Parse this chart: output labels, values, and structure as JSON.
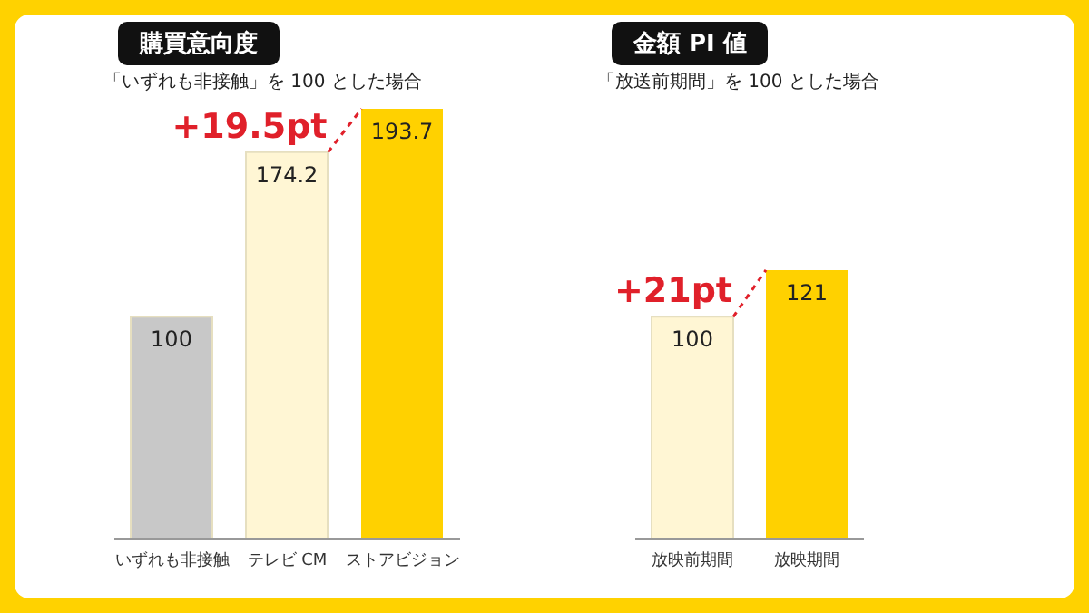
{
  "chart_data": [
    {
      "type": "bar",
      "title": "購買意向度",
      "subtitle": "「いずれも非接触」を 100 とした場合",
      "categories": [
        "いずれも非接触",
        "テレビ CM",
        "ストアビジョン"
      ],
      "values": [
        100,
        174.2,
        193.7
      ],
      "colors": [
        "#c8c8c8",
        "#fff6d4",
        "#ffd100"
      ],
      "data_labels": true,
      "tick_labels": "x",
      "grid": false,
      "legend": false,
      "annotations": [
        "+19.5pt"
      ]
    },
    {
      "type": "bar",
      "title": "金額 PI 値",
      "subtitle": "「放送前期間」を 100 とした場合",
      "categories": [
        "放映前期間",
        "放映期間"
      ],
      "values": [
        100,
        121
      ],
      "colors": [
        "#fff6d4",
        "#ffd100"
      ],
      "data_labels": true,
      "tick_labels": "x",
      "grid": false,
      "legend": false,
      "annotations": [
        "+21pt"
      ]
    }
  ]
}
